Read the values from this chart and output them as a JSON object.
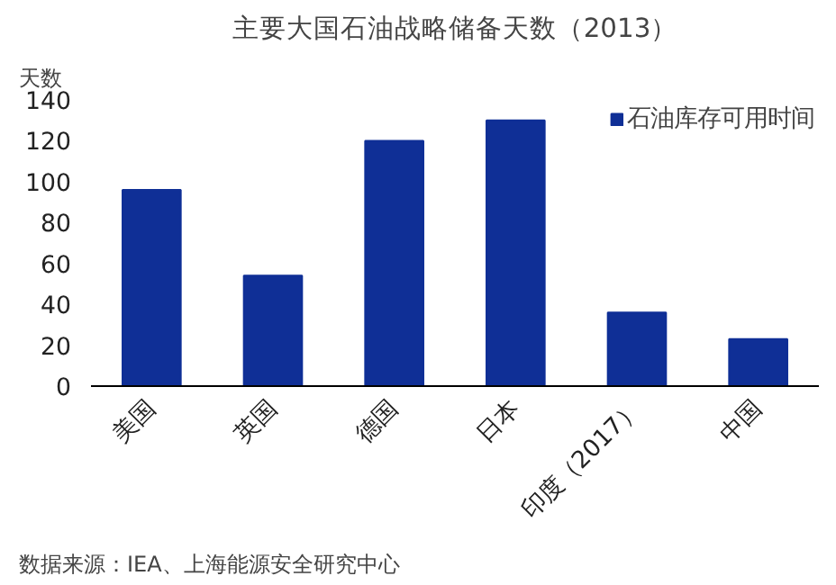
{
  "chart_data": {
    "type": "bar",
    "title": "主要大国石油战略储备天数（2013）",
    "ylabel": "天数",
    "categories": [
      "美国",
      "英国",
      "德国",
      "日本",
      "印度（2017）",
      "中国"
    ],
    "series": [
      {
        "name": "石油库存可用时间",
        "color": "#0f2f96",
        "values": [
          96,
          54,
          120,
          130,
          36,
          23
        ]
      }
    ],
    "ylim": [
      0,
      140
    ],
    "yticks": [
      0,
      20,
      40,
      60,
      80,
      100,
      120,
      140
    ],
    "grid": false,
    "legend": "top right",
    "annotations": [
      "数据来源：IEA、上海能源安全研究中心"
    ]
  }
}
